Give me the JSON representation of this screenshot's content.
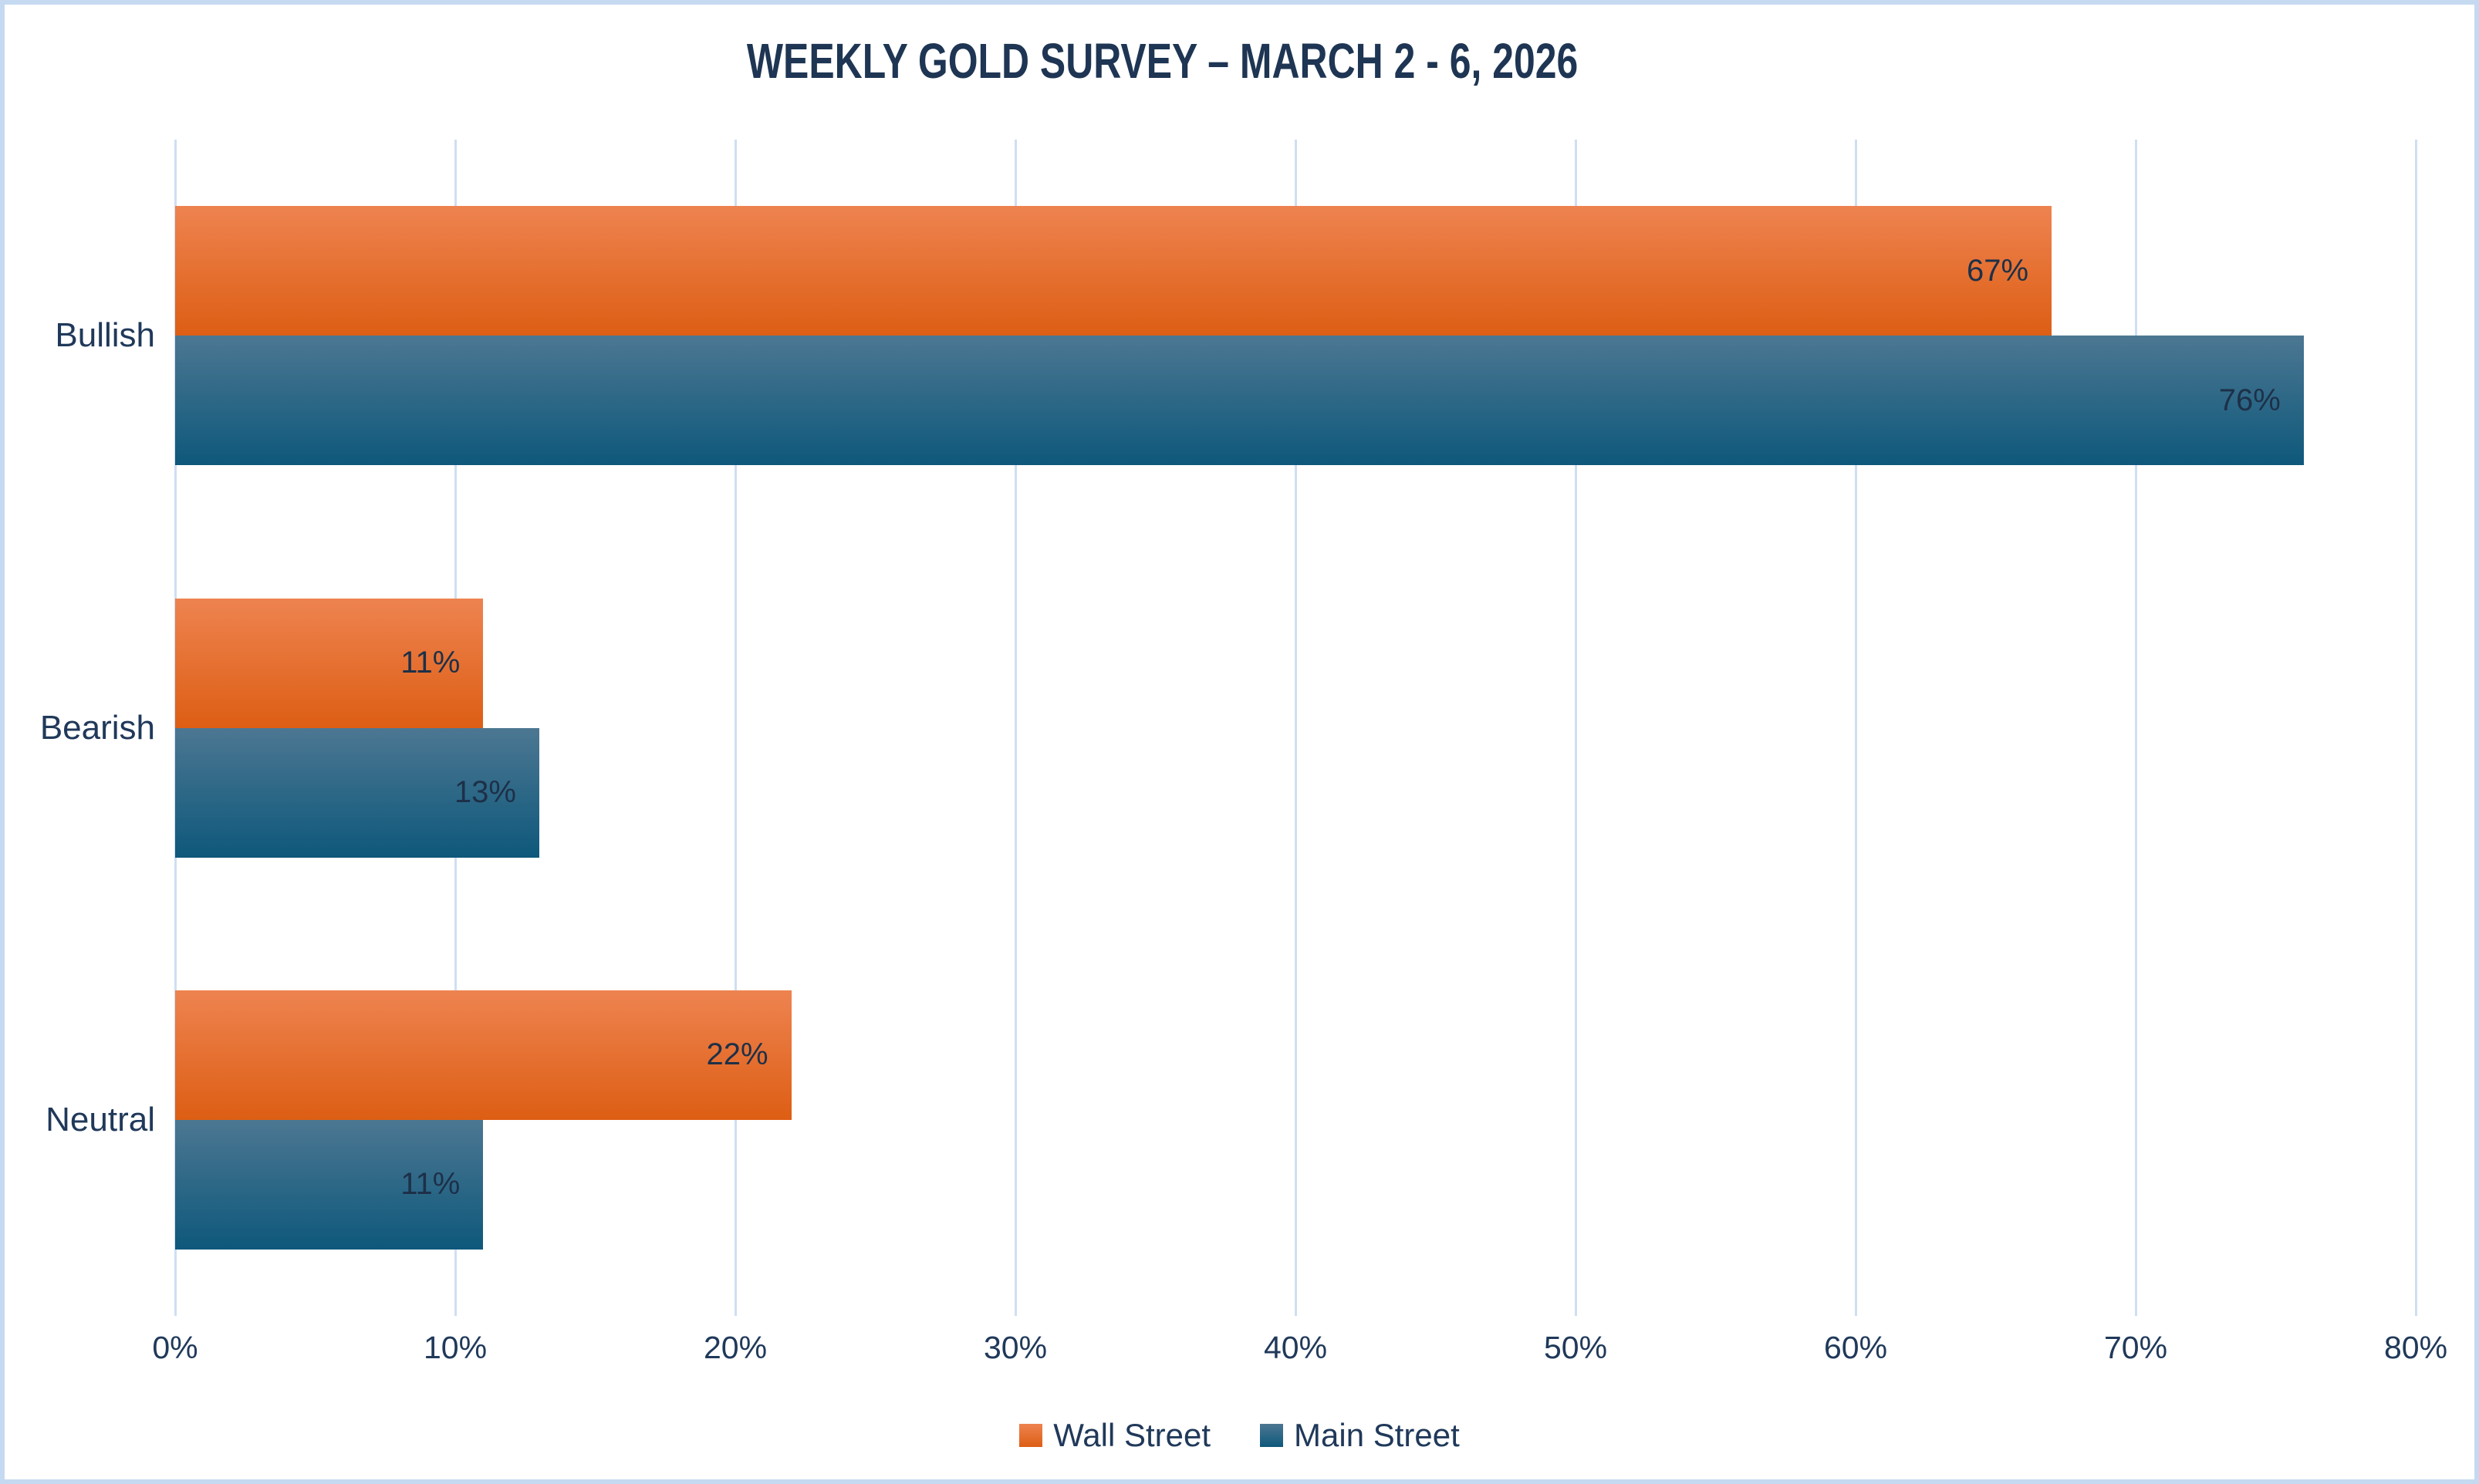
{
  "chart_data": {
    "type": "bar",
    "orientation": "horizontal",
    "title": "WEEKLY GOLD SURVEY – MARCH 2 - 6, 2026",
    "categories": [
      "Bullish",
      "Bearish",
      "Neutral"
    ],
    "series": [
      {
        "name": "Wall Street",
        "values": [
          67,
          11,
          22
        ],
        "color_top": "#EE8350",
        "color_bottom": "#DD5E14"
      },
      {
        "name": "Main Street",
        "values": [
          76,
          13,
          11
        ],
        "color_top": "#4C7792",
        "color_bottom": "#0E587B"
      }
    ],
    "value_suffix": "%",
    "xlim": [
      0,
      80
    ],
    "x_ticks": [
      "0%",
      "10%",
      "20%",
      "30%",
      "40%",
      "50%",
      "60%",
      "70%",
      "80%"
    ],
    "grid": "vertical",
    "data_labels": "inside-end",
    "legend_position": "bottom"
  },
  "colors": {
    "background": "#FFFFFF",
    "frame_border": "#C5D9F1",
    "gridline": "#CEDFF2",
    "title_text": "#1E3553",
    "axis_text": "#20395A",
    "data_label_text": "#1D3048"
  }
}
